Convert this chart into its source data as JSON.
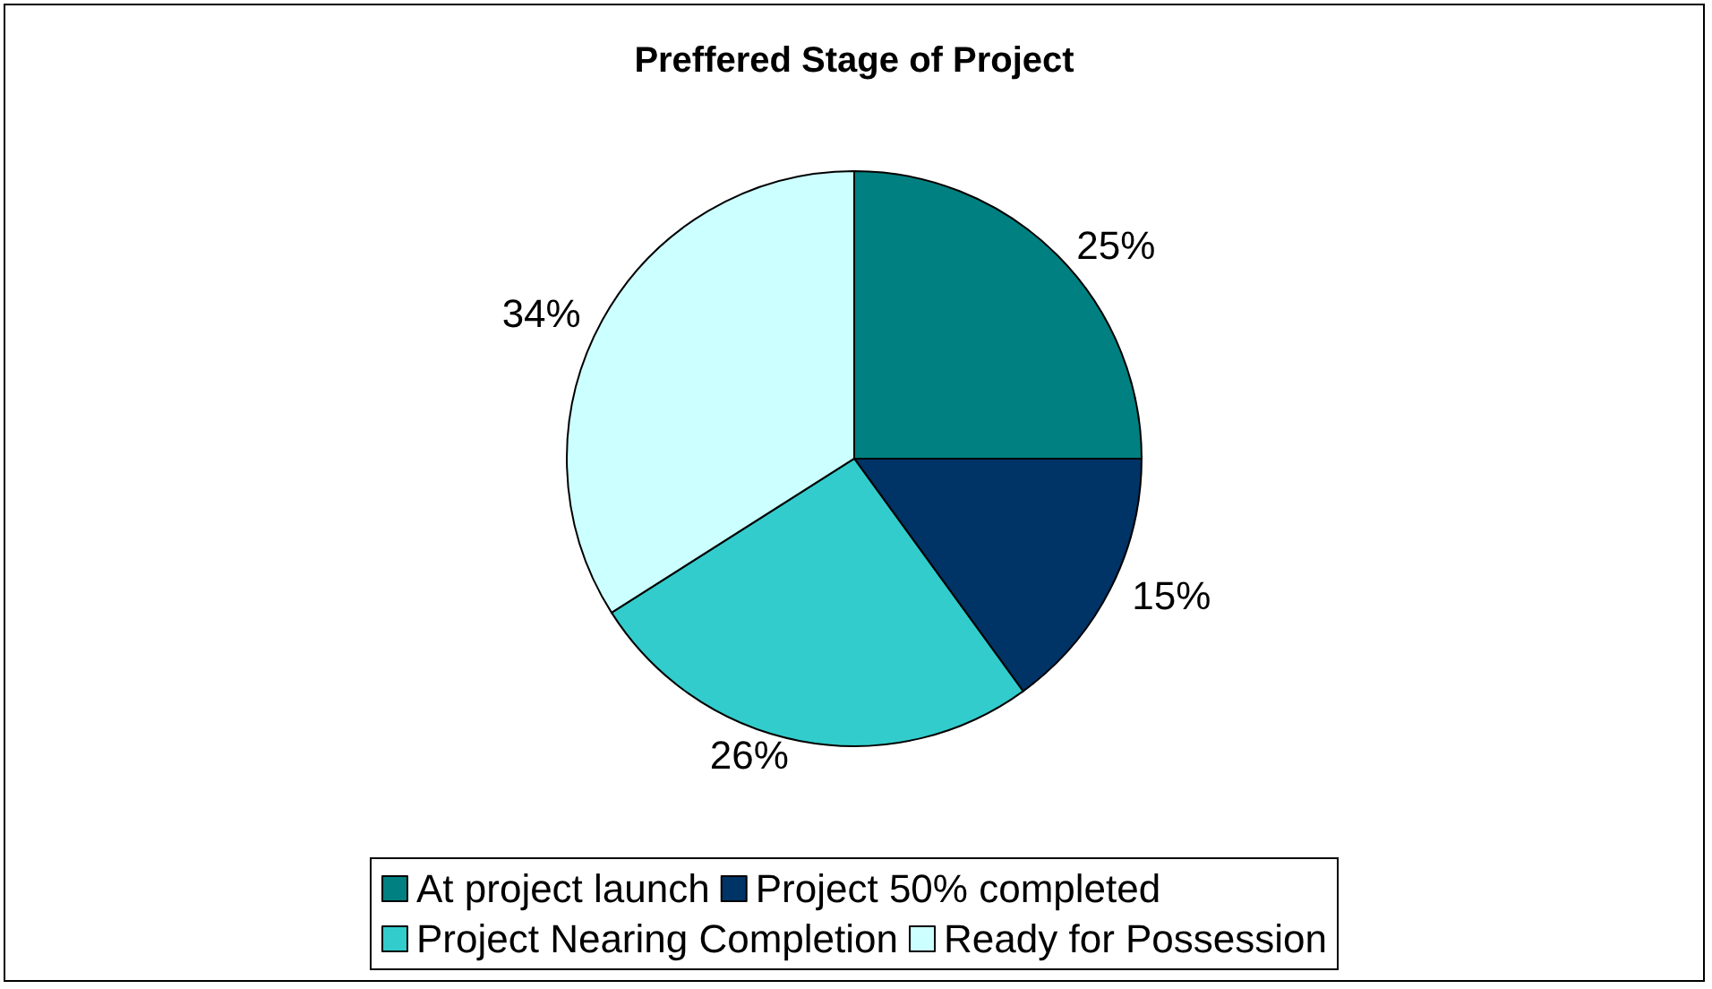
{
  "chart_data": {
    "type": "pie",
    "title": "Preffered Stage of Project",
    "categories": [
      "At project launch",
      "Project 50% completed",
      "Project Nearing Completion",
      "Ready for Possession"
    ],
    "values": [
      25,
      15,
      26,
      34
    ],
    "colors": [
      "#008080",
      "#003366",
      "#33cccc",
      "#ccffff"
    ],
    "value_labels": [
      "25%",
      "15%",
      "26%",
      "34%"
    ],
    "legend": "bottom"
  }
}
